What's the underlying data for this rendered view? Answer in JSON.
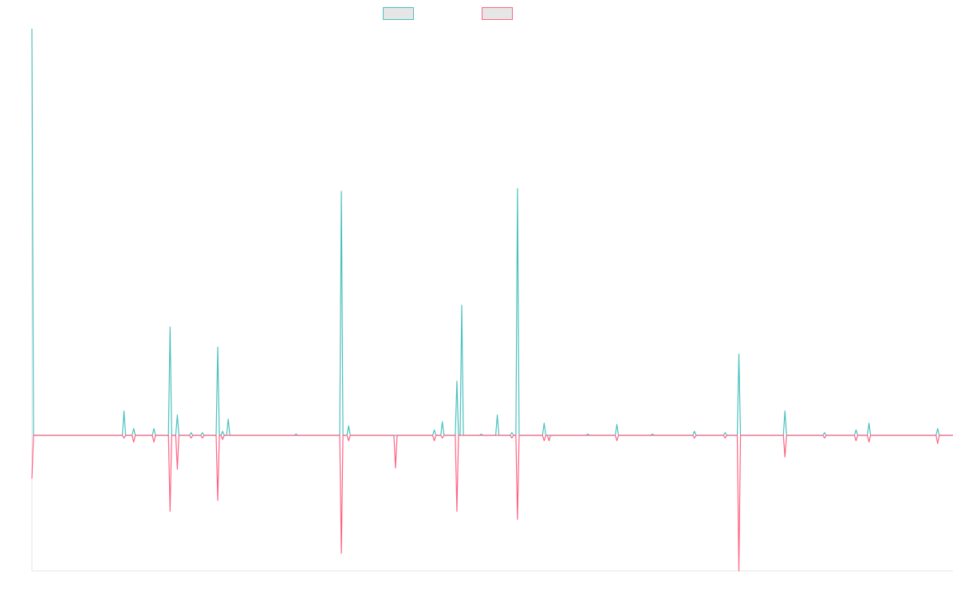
{
  "chart_data": {
    "type": "line",
    "title": "",
    "xlabel": "",
    "ylabel": "",
    "grid": false,
    "legend_position": "top",
    "xlim": [
      0,
      114
    ],
    "ylim": [
      -1.0,
      3.0
    ],
    "series": [
      {
        "color": "#4bc0c0",
        "points": [
          [
            0,
            3.0
          ],
          [
            0.2,
            0
          ],
          [
            11.2,
            0
          ],
          [
            11.4,
            0.18
          ],
          [
            11.6,
            0
          ],
          [
            12.4,
            0
          ],
          [
            12.6,
            0.05
          ],
          [
            12.8,
            0
          ],
          [
            14.9,
            0
          ],
          [
            15.1,
            0.05
          ],
          [
            15.3,
            0
          ],
          [
            16.9,
            0
          ],
          [
            17.1,
            0.8
          ],
          [
            17.3,
            0
          ],
          [
            17.8,
            0
          ],
          [
            18.0,
            0.15
          ],
          [
            18.2,
            0
          ],
          [
            19.5,
            0
          ],
          [
            19.7,
            0.02
          ],
          [
            19.9,
            0
          ],
          [
            20.9,
            0
          ],
          [
            21.1,
            0.02
          ],
          [
            21.3,
            0
          ],
          [
            22.8,
            0
          ],
          [
            23.0,
            0.65
          ],
          [
            23.2,
            0
          ],
          [
            23.4,
            0
          ],
          [
            23.6,
            0.03
          ],
          [
            23.8,
            0
          ],
          [
            24.1,
            0
          ],
          [
            24.3,
            0.12
          ],
          [
            24.5,
            0
          ],
          [
            32.5,
            0
          ],
          [
            32.7,
            0.01
          ],
          [
            32.9,
            0
          ],
          [
            38.1,
            0
          ],
          [
            38.3,
            1.8
          ],
          [
            38.5,
            0
          ],
          [
            39.0,
            0
          ],
          [
            39.2,
            0.07
          ],
          [
            39.4,
            0
          ],
          [
            49.6,
            0
          ],
          [
            49.8,
            0.04
          ],
          [
            50.0,
            0
          ],
          [
            50.6,
            0
          ],
          [
            50.8,
            0.1
          ],
          [
            51.0,
            0
          ],
          [
            52.4,
            0
          ],
          [
            52.6,
            0.4
          ],
          [
            52.8,
            0
          ],
          [
            53.0,
            0
          ],
          [
            53.2,
            0.96
          ],
          [
            53.4,
            0
          ],
          [
            55.4,
            0
          ],
          [
            55.6,
            0.01
          ],
          [
            55.8,
            0
          ],
          [
            57.4,
            0
          ],
          [
            57.6,
            0.15
          ],
          [
            57.8,
            0
          ],
          [
            59.2,
            0
          ],
          [
            59.4,
            0.02
          ],
          [
            59.6,
            0
          ],
          [
            59.9,
            0
          ],
          [
            60.1,
            1.82
          ],
          [
            60.3,
            0
          ],
          [
            63.2,
            0
          ],
          [
            63.4,
            0.09
          ],
          [
            63.6,
            0
          ],
          [
            68.6,
            0
          ],
          [
            68.8,
            0.01
          ],
          [
            69.0,
            0
          ],
          [
            72.2,
            0
          ],
          [
            72.4,
            0.08
          ],
          [
            72.6,
            0
          ],
          [
            76.6,
            0
          ],
          [
            76.8,
            0.01
          ],
          [
            77.0,
            0
          ],
          [
            81.8,
            0
          ],
          [
            82.0,
            0.03
          ],
          [
            82.2,
            0
          ],
          [
            85.6,
            0
          ],
          [
            85.8,
            0.02
          ],
          [
            86.0,
            0
          ],
          [
            87.3,
            0
          ],
          [
            87.5,
            0.6
          ],
          [
            87.7,
            0
          ],
          [
            93.0,
            0
          ],
          [
            93.2,
            0.18
          ],
          [
            93.4,
            0
          ],
          [
            97.9,
            0
          ],
          [
            98.1,
            0.02
          ],
          [
            98.3,
            0
          ],
          [
            101.8,
            0
          ],
          [
            102.0,
            0.04
          ],
          [
            102.2,
            0
          ],
          [
            103.4,
            0
          ],
          [
            103.6,
            0.09
          ],
          [
            103.8,
            0
          ],
          [
            111.9,
            0
          ],
          [
            112.1,
            0.05
          ],
          [
            112.3,
            0
          ],
          [
            114,
            0
          ]
        ]
      },
      {
        "color": "#ff6384",
        "points": [
          [
            0,
            -0.32
          ],
          [
            0.2,
            0
          ],
          [
            11.2,
            0
          ],
          [
            11.4,
            -0.02
          ],
          [
            11.6,
            0
          ],
          [
            12.4,
            0
          ],
          [
            12.6,
            -0.05
          ],
          [
            12.8,
            0
          ],
          [
            14.9,
            0
          ],
          [
            15.1,
            -0.05
          ],
          [
            15.3,
            0
          ],
          [
            16.9,
            0
          ],
          [
            17.1,
            -0.56
          ],
          [
            17.3,
            0
          ],
          [
            17.8,
            0
          ],
          [
            18.0,
            -0.25
          ],
          [
            18.2,
            0
          ],
          [
            19.5,
            0
          ],
          [
            19.7,
            -0.02
          ],
          [
            19.9,
            0
          ],
          [
            20.9,
            0
          ],
          [
            21.1,
            -0.02
          ],
          [
            21.3,
            0
          ],
          [
            22.8,
            0
          ],
          [
            23.0,
            -0.48
          ],
          [
            23.2,
            0
          ],
          [
            23.4,
            0
          ],
          [
            23.6,
            -0.03
          ],
          [
            23.8,
            0
          ],
          [
            38.1,
            0
          ],
          [
            38.3,
            -0.87
          ],
          [
            38.5,
            0
          ],
          [
            39.0,
            0
          ],
          [
            39.2,
            -0.04
          ],
          [
            39.4,
            0
          ],
          [
            44.8,
            0
          ],
          [
            45.0,
            -0.24
          ],
          [
            45.2,
            0
          ],
          [
            49.6,
            0
          ],
          [
            49.8,
            -0.04
          ],
          [
            50.0,
            0
          ],
          [
            50.6,
            0
          ],
          [
            50.8,
            -0.02
          ],
          [
            51.0,
            0
          ],
          [
            52.4,
            0
          ],
          [
            52.6,
            -0.56
          ],
          [
            52.8,
            0
          ],
          [
            59.2,
            0
          ],
          [
            59.4,
            -0.02
          ],
          [
            59.6,
            0
          ],
          [
            59.9,
            0
          ],
          [
            60.1,
            -0.62
          ],
          [
            60.3,
            0
          ],
          [
            63.2,
            0
          ],
          [
            63.4,
            -0.04
          ],
          [
            63.6,
            0
          ],
          [
            63.8,
            0
          ],
          [
            64.0,
            -0.04
          ],
          [
            64.2,
            0
          ],
          [
            72.2,
            0
          ],
          [
            72.4,
            -0.04
          ],
          [
            72.6,
            0
          ],
          [
            81.8,
            0
          ],
          [
            82.0,
            -0.02
          ],
          [
            82.2,
            0
          ],
          [
            85.6,
            0
          ],
          [
            85.8,
            -0.02
          ],
          [
            86.0,
            0
          ],
          [
            87.3,
            0
          ],
          [
            87.5,
            -1.0
          ],
          [
            87.7,
            0
          ],
          [
            93.0,
            0
          ],
          [
            93.2,
            -0.16
          ],
          [
            93.4,
            0
          ],
          [
            97.9,
            0
          ],
          [
            98.1,
            -0.02
          ],
          [
            98.3,
            0
          ],
          [
            101.8,
            0
          ],
          [
            102.0,
            -0.04
          ],
          [
            102.2,
            0
          ],
          [
            103.4,
            0
          ],
          [
            103.6,
            -0.05
          ],
          [
            103.8,
            0
          ],
          [
            111.9,
            0
          ],
          [
            112.1,
            -0.06
          ],
          [
            112.3,
            0
          ],
          [
            114,
            0
          ]
        ]
      }
    ]
  }
}
